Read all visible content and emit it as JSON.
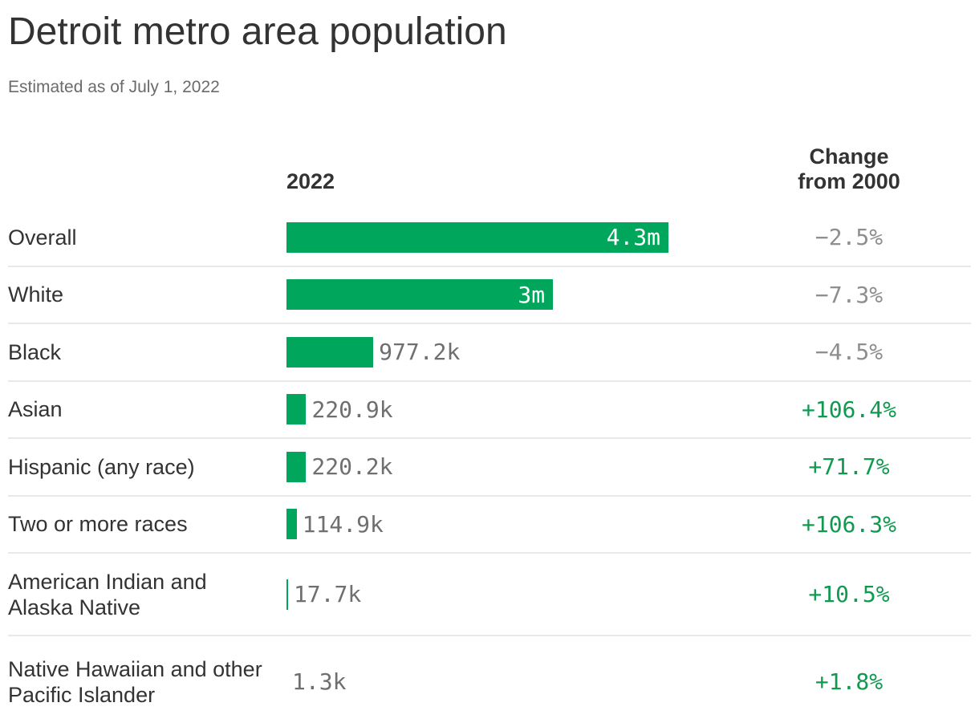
{
  "header": {
    "title": "Detroit metro area population",
    "subtitle": "Estimated as of July 1, 2022"
  },
  "table": {
    "value_column_header": "2022",
    "change_header_line1": "Change",
    "change_header_line2": "from 2000"
  },
  "colors": {
    "bar_green": "#00a65c",
    "positive_green": "#0f9a50",
    "negative_gray": "#8e8e8e",
    "value_gray": "#6f6f6f",
    "text_dark": "#333333",
    "subtitle_gray": "#6b6b6b",
    "divider": "#e9e9e9"
  },
  "chart_data": {
    "type": "bar",
    "orientation": "horizontal",
    "title": "Detroit metro area population",
    "subtitle": "Estimated as of July 1, 2022",
    "grid": false,
    "legend": "none",
    "x_max": 4300000,
    "categories": [
      "Overall",
      "White",
      "Black",
      "Asian",
      "Hispanic (any race)",
      "Two or more races",
      "American Indian and Alaska Native",
      "Native Hawaiian and other Pacific Islander"
    ],
    "series": [
      {
        "name": "2022",
        "values": [
          4300000,
          3000000,
          977200,
          220900,
          220200,
          114900,
          17700,
          1300
        ],
        "labels": [
          "4.3m",
          "3m",
          "977.2k",
          "220.9k",
          "220.2k",
          "114.9k",
          "17.7k",
          "1.3k"
        ]
      },
      {
        "name": "Change from 2000",
        "values": [
          -2.5,
          -7.3,
          -4.5,
          106.4,
          71.7,
          106.3,
          10.5,
          1.8
        ],
        "labels": [
          "−2.5%",
          "−7.3%",
          "−4.5%",
          "+106.4%",
          "+71.7%",
          "+106.3%",
          "+10.5%",
          "+1.8%"
        ]
      }
    ]
  }
}
